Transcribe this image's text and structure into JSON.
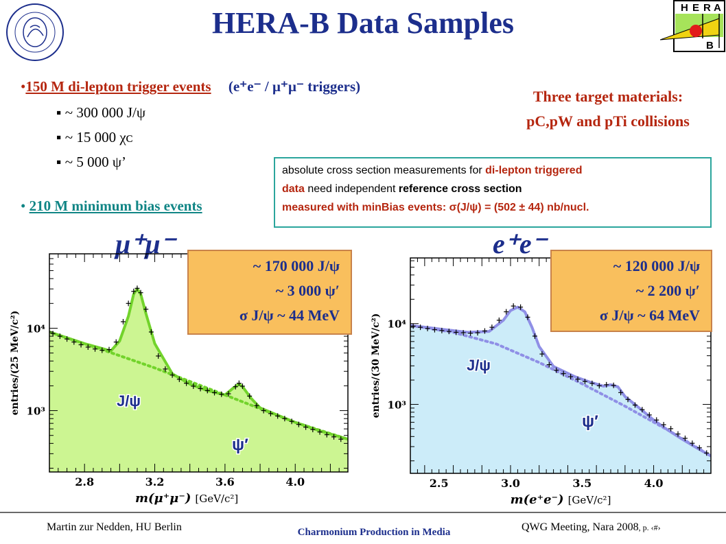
{
  "title": "HERA-B Data Samples",
  "bullets": {
    "trigger_link": "150 M di-lepton trigger events",
    "trigger_tail": "(e⁺e⁻ / μ⁺μ⁻ triggers)",
    "sub_items": [
      "~ 300 000 J/ψ",
      "~ 15 000 χᴄ",
      "~ 5 000 ψ’"
    ],
    "minbias_link": "210 M minimum bias events"
  },
  "targets": {
    "line1": "Three target materials:",
    "line2": "pC,pW and pTi collisions"
  },
  "infobox": {
    "line1_a": "absolute cross section measurements for ",
    "line1_b": "di-lepton triggered",
    "line2_a": "data",
    "line2_b": " need independent ",
    "line2_c": "reference cross section",
    "line3": "measured with minBias events: σ(J/ψ) = (502 ± 44) nb/nucl."
  },
  "colors": {
    "title": "#1c2e8c",
    "red": "#b5260f",
    "teal": "#108585",
    "mumu_fill": "#ccf592",
    "mumu_curve": "#72d32b",
    "ee_fill": "#ccecf9",
    "ee_curve": "#8f8fe6",
    "box_fill": "#f9bf5d"
  },
  "chart_data": [
    {
      "type": "line",
      "label": "μ⁺μ⁻",
      "xlabel_main": "m(μ⁺μ⁻)",
      "xlabel_unit": "[GeV/c²]",
      "ylabel": "entries/(25 MeV/c²)",
      "xlim": [
        2.6,
        4.3
      ],
      "ylim": [
        180,
        80000
      ],
      "log_y": true,
      "xticks": [
        {
          "v": 2.8,
          "t": "2.8"
        },
        {
          "v": 3.2,
          "t": "3.2"
        },
        {
          "v": 3.6,
          "t": "3.6"
        },
        {
          "v": 4.0,
          "t": "4.0"
        }
      ],
      "yticks": [
        {
          "v": 1000,
          "t": "10³"
        },
        {
          "v": 10000,
          "t": "10⁴"
        }
      ],
      "box": [
        "~ 170 000 J/ψ",
        "~ 3 000 ψ′",
        "σ J/ψ ~ 44 MeV"
      ],
      "peak_labels": [
        "J/ψ",
        "ψ′"
      ],
      "background": {
        "x": [
          2.6,
          2.9,
          3.2,
          3.6,
          4.0,
          4.3
        ],
        "y": [
          9000,
          5500,
          3300,
          1550,
          720,
          450
        ]
      },
      "fit": {
        "x": [
          2.6,
          2.8,
          2.95,
          3.0,
          3.05,
          3.08,
          3.1,
          3.12,
          3.15,
          3.2,
          3.3,
          3.4,
          3.5,
          3.6,
          3.65,
          3.68,
          3.7,
          3.75,
          3.8,
          3.9,
          4.0,
          4.15,
          4.3
        ],
        "y": [
          9000,
          6500,
          5300,
          7000,
          14000,
          26000,
          30000,
          26000,
          15000,
          6500,
          2800,
          2100,
          1750,
          1550,
          1900,
          2100,
          1950,
          1400,
          1080,
          880,
          720,
          560,
          450
        ]
      },
      "points": {
        "x": [
          2.62,
          2.66,
          2.7,
          2.74,
          2.78,
          2.82,
          2.86,
          2.9,
          2.94,
          2.98,
          3.02,
          3.05,
          3.08,
          3.1,
          3.12,
          3.15,
          3.18,
          3.22,
          3.26,
          3.3,
          3.34,
          3.38,
          3.42,
          3.46,
          3.5,
          3.54,
          3.58,
          3.62,
          3.66,
          3.68,
          3.7,
          3.74,
          3.78,
          3.82,
          3.86,
          3.9,
          3.94,
          3.98,
          4.02,
          4.06,
          4.1,
          4.14,
          4.18,
          4.22,
          4.26
        ],
        "y": [
          8600,
          8000,
          7400,
          6800,
          6300,
          5900,
          5600,
          5400,
          5500,
          6800,
          12000,
          20000,
          28000,
          30500,
          27000,
          17000,
          9000,
          4600,
          3200,
          2700,
          2400,
          2150,
          1980,
          1850,
          1750,
          1650,
          1580,
          1600,
          1950,
          2150,
          1980,
          1500,
          1150,
          1000,
          920,
          860,
          800,
          740,
          680,
          630,
          590,
          550,
          510,
          480,
          450
        ]
      }
    },
    {
      "type": "line",
      "label": "e⁺e⁻",
      "xlabel_main": "m(e⁺e⁻)",
      "xlabel_unit": "[GeV/c²]",
      "ylabel": "entries/(30 MeV/c²)",
      "xlim": [
        2.3,
        4.4
      ],
      "ylim": [
        140,
        65000
      ],
      "log_y": true,
      "xticks": [
        {
          "v": 2.5,
          "t": "2.5"
        },
        {
          "v": 3.0,
          "t": "3.0"
        },
        {
          "v": 3.5,
          "t": "3.5"
        },
        {
          "v": 4.0,
          "t": "4.0"
        }
      ],
      "yticks": [
        {
          "v": 1000,
          "t": "10³"
        },
        {
          "v": 10000,
          "t": "10⁴"
        }
      ],
      "box": [
        "~ 120 000 J/ψ",
        "~ 2 200 ψ′",
        "σ J/ψ ~ 64 MeV"
      ],
      "peak_labels": [
        "J/ψ",
        "ψ′"
      ],
      "background": {
        "x": [
          2.3,
          2.6,
          2.9,
          3.2,
          3.5,
          3.8,
          4.1,
          4.4
        ],
        "y": [
          9500,
          7800,
          5600,
          3300,
          1800,
          950,
          480,
          230
        ]
      },
      "fit": {
        "x": [
          2.3,
          2.5,
          2.7,
          2.85,
          2.95,
          3.0,
          3.05,
          3.1,
          3.15,
          3.2,
          3.3,
          3.45,
          3.55,
          3.65,
          3.7,
          3.75,
          3.8,
          3.9,
          4.0,
          4.1,
          4.2,
          4.3,
          4.4
        ],
        "y": [
          9500,
          8600,
          7800,
          8000,
          11000,
          14500,
          16000,
          14000,
          9000,
          5200,
          2950,
          2200,
          1900,
          1680,
          1750,
          1650,
          1250,
          900,
          640,
          480,
          370,
          290,
          230
        ]
      },
      "points": {
        "x": [
          2.32,
          2.37,
          2.42,
          2.47,
          2.52,
          2.57,
          2.62,
          2.67,
          2.72,
          2.77,
          2.82,
          2.87,
          2.92,
          2.97,
          3.02,
          3.07,
          3.12,
          3.17,
          3.22,
          3.27,
          3.32,
          3.37,
          3.42,
          3.47,
          3.52,
          3.57,
          3.62,
          3.67,
          3.72,
          3.77,
          3.82,
          3.87,
          3.92,
          3.97,
          4.02,
          4.07,
          4.12,
          4.17,
          4.22,
          4.27,
          4.32,
          4.37
        ],
        "y": [
          9300,
          9000,
          8700,
          8400,
          8200,
          8000,
          7800,
          7700,
          7600,
          7700,
          8100,
          9000,
          11000,
          14000,
          16500,
          16000,
          12000,
          7000,
          4200,
          3100,
          2650,
          2400,
          2200,
          2050,
          1920,
          1820,
          1700,
          1750,
          1720,
          1400,
          1150,
          980,
          860,
          740,
          640,
          560,
          500,
          430,
          380,
          330,
          290,
          250
        ]
      }
    }
  ],
  "footer": {
    "left": "Martin zur Nedden, HU Berlin",
    "center": "Charmonium Production in Media",
    "right": "QWG Meeting, Nara 2008",
    "right_small": ", p. ‹#›"
  },
  "logos": {
    "hera_letters": [
      "H",
      "E",
      "R",
      "A"
    ],
    "hera_b": "B",
    "hu_text": "HUMBOLDT-UNIVERSITÄT ZU BERLIN"
  }
}
